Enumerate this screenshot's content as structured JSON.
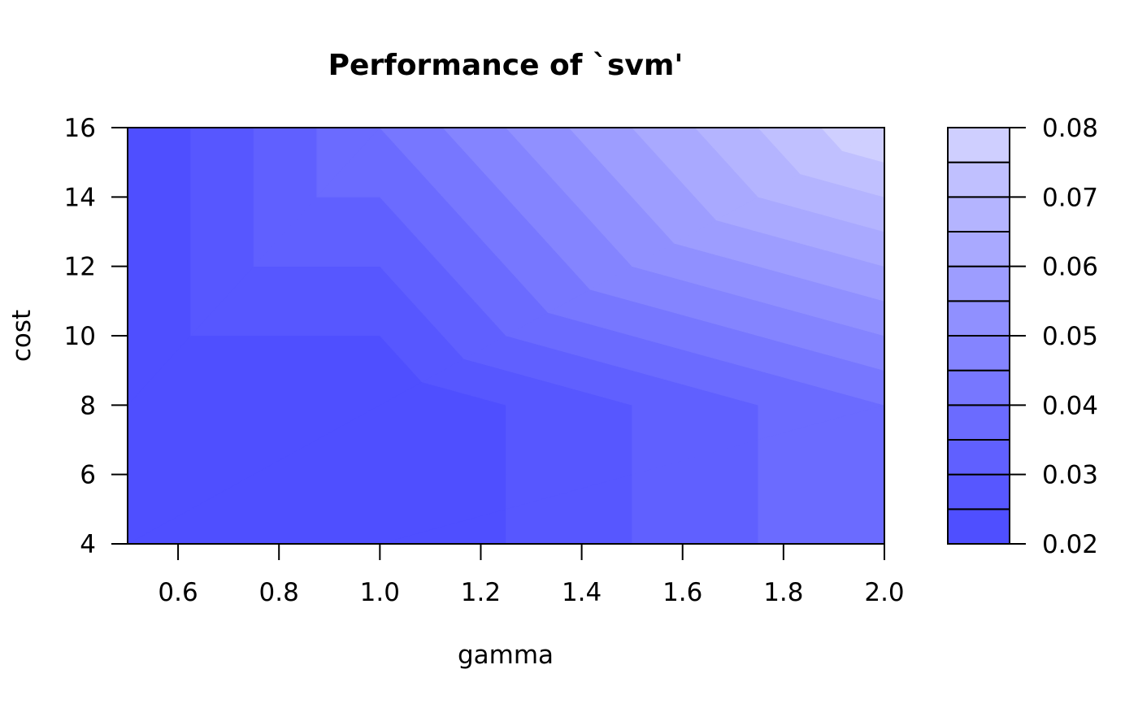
{
  "chart_data": {
    "type": "heatmap",
    "subtype": "filled-contour",
    "title": "Performance of `svm'",
    "xlabel": "gamma",
    "ylabel": "cost",
    "xlim": [
      0.5,
      2.0
    ],
    "ylim": [
      4,
      16
    ],
    "x_ticks": [
      "0.6",
      "0.8",
      "1.0",
      "1.2",
      "1.4",
      "1.6",
      "1.8",
      "2.0"
    ],
    "y_ticks": [
      "4",
      "6",
      "8",
      "10",
      "12",
      "14",
      "16"
    ],
    "grid": {
      "gamma": [
        0.5,
        1.0,
        2.0
      ],
      "cost": [
        4,
        8,
        16
      ],
      "error": [
        [
          0.02,
          0.02,
          0.02
        ],
        [
          0.02,
          0.02,
          0.04
        ],
        [
          0.04,
          0.04,
          0.08
        ]
      ],
      "error_layout": "rows follow gamma, columns follow cost"
    },
    "levels": [
      0.02,
      0.025,
      0.03,
      0.035,
      0.04,
      0.045,
      0.05,
      0.055,
      0.06,
      0.065,
      0.07,
      0.075,
      0.08
    ],
    "colors": [
      "#4f4fff",
      "#5757ff",
      "#6060ff",
      "#6b6bff",
      "#7777ff",
      "#8484ff",
      "#9090ff",
      "#9d9dff",
      "#a9a9ff",
      "#b4b4ff",
      "#c0c0ff",
      "#cfcfff"
    ],
    "legend": {
      "position": "right",
      "tick_labels": [
        "0.02",
        "0.03",
        "0.04",
        "0.05",
        "0.06",
        "0.07",
        "0.08"
      ]
    },
    "grid_lines": false
  }
}
